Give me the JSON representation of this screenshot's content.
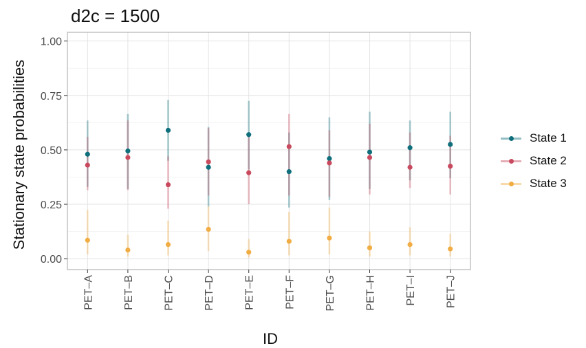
{
  "chart_data": {
    "type": "scatter",
    "title": "d2c = 1500",
    "xlabel": "ID",
    "ylabel": "Stationary state probabilities",
    "categories": [
      "PET–A",
      "PET–B",
      "PET–C",
      "PET–D",
      "PET–E",
      "PET–F",
      "PET–G",
      "PET–H",
      "PET–I",
      "PET–J"
    ],
    "ylim": [
      -0.05,
      1.04
    ],
    "yticks": [
      "0.00",
      "0.25",
      "0.50",
      "0.75",
      "1.00"
    ],
    "grid": true,
    "legend_position": "right",
    "series": [
      {
        "name": "State 1",
        "color": "#0f6f7c",
        "values": [
          0.48,
          0.495,
          0.59,
          0.42,
          0.57,
          0.4,
          0.46,
          0.49,
          0.51,
          0.525
        ],
        "lower": [
          0.33,
          0.32,
          0.45,
          0.24,
          0.41,
          0.235,
          0.27,
          0.32,
          0.36,
          0.37
        ],
        "upper": [
          0.635,
          0.665,
          0.73,
          0.605,
          0.725,
          0.58,
          0.65,
          0.675,
          0.635,
          0.675
        ]
      },
      {
        "name": "State 2",
        "color": "#c94a5e",
        "values": [
          0.43,
          0.465,
          0.34,
          0.445,
          0.395,
          0.515,
          0.44,
          0.465,
          0.42,
          0.425
        ],
        "lower": [
          0.315,
          0.315,
          0.23,
          0.29,
          0.25,
          0.29,
          0.285,
          0.295,
          0.325,
          0.295
        ],
        "upper": [
          0.56,
          0.635,
          0.47,
          0.6,
          0.56,
          0.665,
          0.59,
          0.62,
          0.58,
          0.565
        ]
      },
      {
        "name": "State 3",
        "color": "#f1ad44",
        "values": [
          0.085,
          0.04,
          0.065,
          0.135,
          0.03,
          0.08,
          0.095,
          0.05,
          0.065,
          0.045
        ],
        "lower": [
          0.02,
          0.01,
          0.015,
          0.035,
          0.005,
          0.015,
          0.02,
          0.01,
          0.015,
          0.01
        ],
        "upper": [
          0.225,
          0.11,
          0.175,
          0.24,
          0.09,
          0.215,
          0.235,
          0.125,
          0.145,
          0.115
        ]
      }
    ]
  }
}
